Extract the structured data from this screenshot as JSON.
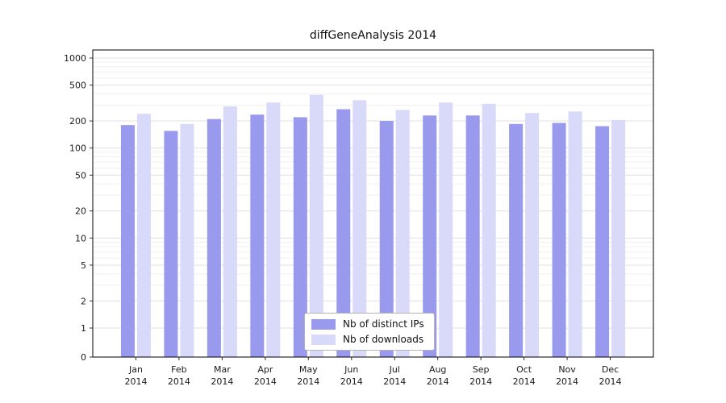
{
  "chart_data": {
    "type": "bar",
    "title": "diffGeneAnalysis 2014",
    "xlabel": "",
    "ylabel": "",
    "yscale": "symlog",
    "ylim": [
      0,
      1200
    ],
    "yticks": [
      1000,
      500,
      200,
      100,
      50,
      20,
      10,
      5,
      2,
      1,
      0
    ],
    "grid": true,
    "legend_position": "lower center",
    "year": "2014",
    "categories": [
      "Jan",
      "Feb",
      "Mar",
      "Apr",
      "May",
      "Jun",
      "Jul",
      "Aug",
      "Sep",
      "Oct",
      "Nov",
      "Dec"
    ],
    "series": [
      {
        "name": "Nb of distinct IPs",
        "color": "#9999ee",
        "values": [
          180,
          155,
          210,
          235,
          220,
          270,
          200,
          230,
          230,
          185,
          190,
          175
        ]
      },
      {
        "name": "Nb of downloads",
        "color": "#d9d9f9",
        "values": [
          240,
          185,
          290,
          320,
          390,
          340,
          265,
          320,
          310,
          245,
          255,
          205
        ]
      }
    ]
  }
}
